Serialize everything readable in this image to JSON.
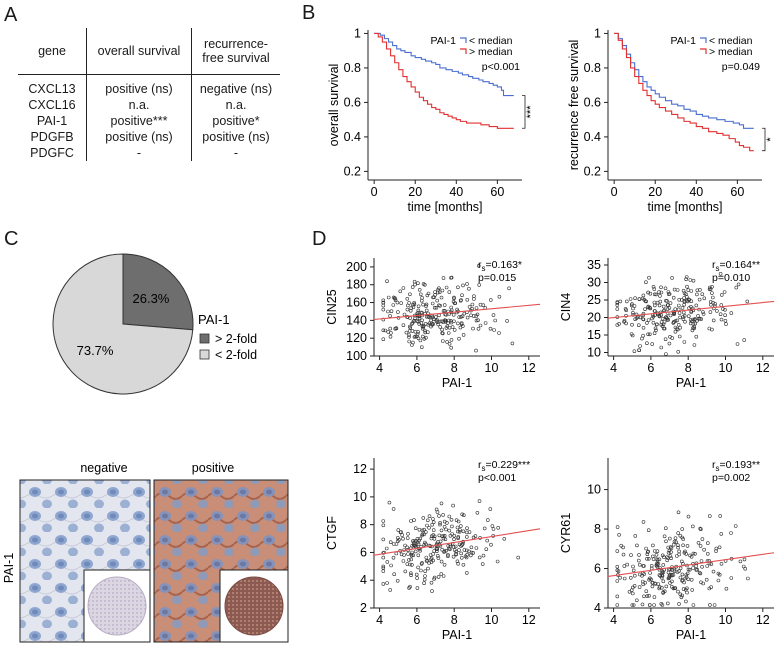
{
  "panel_labels": {
    "a": "A",
    "b": "B",
    "c": "C",
    "d": "D"
  },
  "table": {
    "headers": [
      "gene",
      "overall survival",
      "recurrence-\nfree survival"
    ],
    "rows": [
      [
        "CXCL13",
        "positive (ns)",
        "negative (ns)"
      ],
      [
        "CXCL16",
        "n.a.",
        "n.a."
      ],
      [
        "PAI-1",
        "positive***",
        "positive*"
      ],
      [
        "PDGFB",
        "positive (ns)",
        "positive (ns)"
      ],
      [
        "PDGFC",
        "-",
        "-"
      ]
    ]
  },
  "chart_data": [
    {
      "id": "km_os",
      "type": "line",
      "title": "",
      "xlabel": "time [months]",
      "ylabel": "overall survival",
      "xlim": [
        -3,
        72
      ],
      "ylim": [
        0.15,
        1.02
      ],
      "xticks": [
        0,
        20,
        40,
        60
      ],
      "yticks": [
        0.2,
        0.4,
        0.6,
        0.8,
        1
      ],
      "legend_title": "PAI-1",
      "pvalue": "p<0.001",
      "significance": "***",
      "series": [
        {
          "name": "< median",
          "color": "#4a6fd0",
          "points": [
            [
              0,
              1
            ],
            [
              3,
              0.99
            ],
            [
              5,
              0.97
            ],
            [
              7,
              0.95
            ],
            [
              9,
              0.93
            ],
            [
              11,
              0.91
            ],
            [
              13,
              0.9
            ],
            [
              15,
              0.89
            ],
            [
              18,
              0.87
            ],
            [
              20,
              0.86
            ],
            [
              23,
              0.85
            ],
            [
              25,
              0.84
            ],
            [
              28,
              0.83
            ],
            [
              30,
              0.82
            ],
            [
              32,
              0.8
            ],
            [
              35,
              0.79
            ],
            [
              38,
              0.78
            ],
            [
              41,
              0.77
            ],
            [
              43,
              0.76
            ],
            [
              46,
              0.75
            ],
            [
              48,
              0.74
            ],
            [
              51,
              0.73
            ],
            [
              53,
              0.72
            ],
            [
              56,
              0.71
            ],
            [
              58,
              0.7
            ],
            [
              60,
              0.69
            ],
            [
              62,
              0.67
            ],
            [
              63,
              0.64
            ],
            [
              67,
              0.64
            ],
            [
              68,
              0.64
            ]
          ]
        },
        {
          "name": "> median",
          "color": "#e03030",
          "points": [
            [
              0,
              1
            ],
            [
              2,
              0.98
            ],
            [
              4,
              0.95
            ],
            [
              6,
              0.91
            ],
            [
              8,
              0.87
            ],
            [
              10,
              0.83
            ],
            [
              12,
              0.79
            ],
            [
              14,
              0.75
            ],
            [
              16,
              0.72
            ],
            [
              18,
              0.69
            ],
            [
              20,
              0.66
            ],
            [
              22,
              0.63
            ],
            [
              24,
              0.61
            ],
            [
              26,
              0.59
            ],
            [
              28,
              0.57
            ],
            [
              30,
              0.56
            ],
            [
              32,
              0.54
            ],
            [
              34,
              0.53
            ],
            [
              36,
              0.52
            ],
            [
              38,
              0.51
            ],
            [
              40,
              0.5
            ],
            [
              42,
              0.49
            ],
            [
              45,
              0.48
            ],
            [
              48,
              0.48
            ],
            [
              52,
              0.47
            ],
            [
              56,
              0.46
            ],
            [
              60,
              0.45
            ],
            [
              64,
              0.45
            ],
            [
              68,
              0.45
            ]
          ]
        }
      ]
    },
    {
      "id": "km_rfs",
      "type": "line",
      "title": "",
      "xlabel": "time [months]",
      "ylabel": "recurrence free survival",
      "xlim": [
        -3,
        72
      ],
      "ylim": [
        0.15,
        1.02
      ],
      "xticks": [
        0,
        20,
        40,
        60
      ],
      "yticks": [
        0.2,
        0.4,
        0.6,
        0.8,
        1
      ],
      "legend_title": "PAI-1",
      "pvalue": "p=0.049",
      "significance": "*",
      "series": [
        {
          "name": "< median",
          "color": "#4a6fd0",
          "points": [
            [
              0,
              1
            ],
            [
              2,
              0.97
            ],
            [
              4,
              0.93
            ],
            [
              6,
              0.88
            ],
            [
              8,
              0.83
            ],
            [
              10,
              0.79
            ],
            [
              12,
              0.75
            ],
            [
              14,
              0.72
            ],
            [
              16,
              0.69
            ],
            [
              18,
              0.67
            ],
            [
              20,
              0.65
            ],
            [
              22,
              0.63
            ],
            [
              25,
              0.61
            ],
            [
              28,
              0.59
            ],
            [
              31,
              0.58
            ],
            [
              34,
              0.56
            ],
            [
              37,
              0.55
            ],
            [
              40,
              0.53
            ],
            [
              43,
              0.52
            ],
            [
              46,
              0.51
            ],
            [
              50,
              0.5
            ],
            [
              54,
              0.49
            ],
            [
              58,
              0.48
            ],
            [
              61,
              0.47
            ],
            [
              63,
              0.45
            ],
            [
              68,
              0.45
            ]
          ]
        },
        {
          "name": "> median",
          "color": "#e03030",
          "points": [
            [
              0,
              1
            ],
            [
              2,
              0.96
            ],
            [
              4,
              0.91
            ],
            [
              6,
              0.86
            ],
            [
              8,
              0.8
            ],
            [
              10,
              0.75
            ],
            [
              12,
              0.71
            ],
            [
              14,
              0.67
            ],
            [
              16,
              0.64
            ],
            [
              18,
              0.61
            ],
            [
              20,
              0.59
            ],
            [
              22,
              0.57
            ],
            [
              25,
              0.55
            ],
            [
              28,
              0.53
            ],
            [
              31,
              0.51
            ],
            [
              34,
              0.49
            ],
            [
              37,
              0.48
            ],
            [
              40,
              0.46
            ],
            [
              43,
              0.45
            ],
            [
              46,
              0.43
            ],
            [
              50,
              0.42
            ],
            [
              53,
              0.41
            ],
            [
              56,
              0.39
            ],
            [
              59,
              0.37
            ],
            [
              61,
              0.35
            ],
            [
              63,
              0.34
            ],
            [
              66,
              0.32
            ],
            [
              68,
              0.32
            ]
          ]
        }
      ]
    },
    {
      "id": "pie",
      "type": "pie",
      "title": "",
      "legend_title": "PAI-1",
      "slices": [
        {
          "label": "> 2-fold",
          "value": 26.3,
          "text": "26.3%",
          "color": "#6e6e6e"
        },
        {
          "label": "< 2-fold",
          "value": 73.7,
          "text": "73.7%",
          "color": "#d8d8d8"
        }
      ]
    },
    {
      "id": "sc_cin25",
      "type": "scatter",
      "xlabel": "PAI-1",
      "ylabel": "CIN25",
      "xlim": [
        3.7,
        12.6
      ],
      "ylim": [
        100,
        210
      ],
      "xticks": [
        4,
        6,
        8,
        10,
        12
      ],
      "yticks": [
        100,
        120,
        140,
        160,
        180,
        200
      ],
      "rs": "=0.163*",
      "pvalue": "p=0.015",
      "n_points": 260,
      "x_mean": 6.6,
      "x_sd": 1.3,
      "resid_sd": 18,
      "fit": {
        "x0": 3.7,
        "y0": 141,
        "x1": 12.6,
        "y1": 158,
        "color": "#e35050"
      }
    },
    {
      "id": "sc_cin4",
      "type": "scatter",
      "xlabel": "PAI-1",
      "ylabel": "CIN4",
      "xlim": [
        3.7,
        12.6
      ],
      "ylim": [
        9,
        37
      ],
      "xticks": [
        4,
        6,
        8,
        10,
        12
      ],
      "yticks": [
        10,
        15,
        20,
        25,
        30,
        35
      ],
      "rs": "=0.164**",
      "pvalue": "p=0.010",
      "n_points": 260,
      "x_mean": 6.6,
      "x_sd": 1.3,
      "resid_sd": 4,
      "fit": {
        "x0": 3.7,
        "y0": 19.8,
        "x1": 12.6,
        "y1": 24.6,
        "color": "#e35050"
      }
    },
    {
      "id": "sc_ctgf",
      "type": "scatter",
      "xlabel": "PAI-1",
      "ylabel": "CTGF",
      "xlim": [
        3.7,
        12.6
      ],
      "ylim": [
        2,
        12.8
      ],
      "xticks": [
        4,
        6,
        8,
        10,
        12
      ],
      "yticks": [
        2,
        4,
        6,
        8,
        10,
        12
      ],
      "rs": "=0.229***",
      "pvalue": "p<0.001",
      "n_points": 260,
      "x_mean": 6.6,
      "x_sd": 1.3,
      "resid_sd": 1.3,
      "fit": {
        "x0": 3.7,
        "y0": 5.8,
        "x1": 12.6,
        "y1": 7.7,
        "color": "#e35050"
      }
    },
    {
      "id": "sc_cyr61",
      "type": "scatter",
      "xlabel": "PAI-1",
      "ylabel": "CYR61",
      "xlim": [
        3.7,
        12.6
      ],
      "ylim": [
        4,
        11.6
      ],
      "xticks": [
        4,
        6,
        8,
        10,
        12
      ],
      "yticks": [
        4,
        6,
        8,
        10
      ],
      "rs": "=0.193**",
      "pvalue": "p=0.002",
      "n_points": 260,
      "x_mean": 6.6,
      "x_sd": 1.3,
      "resid_sd": 1.0,
      "fit": {
        "x0": 3.7,
        "y0": 5.6,
        "x1": 12.6,
        "y1": 6.8,
        "color": "#e35050"
      }
    }
  ],
  "ihc": {
    "negative_label": "negative",
    "positive_label": "positive",
    "row_label": "PAI-1"
  }
}
